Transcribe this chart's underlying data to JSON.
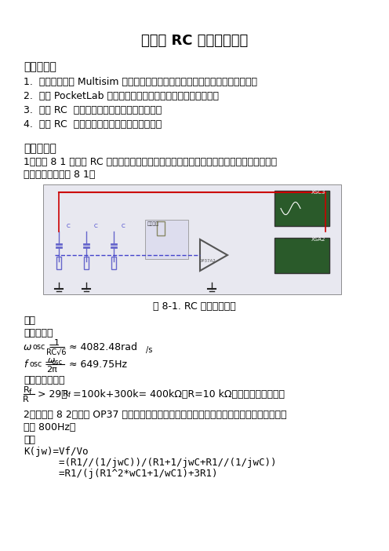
{
  "title": "实验八 RC 正弦波振荡器",
  "section1_title": "实验目的：",
  "section1_items": [
    "1.  熟悉仿真软件 Multisim 的使用，掌握基于软件的电路设计和仿真分析方法；",
    "2.  熟悉 PocketLab 硬件实验平台，掌握基本功能的使用方法；",
    "3.  掌握 RC  正弦波振荡器的设计与分析方法；",
    "4.  掌握 RC  正弦波振荡器的安装与调试方法。"
  ],
  "section2_title": "实验预习：",
  "section2_text1": "1．在图 8 1 所示的 RC 相移振荡电路中，请计算振荡器的振荡频率和振幅起振条件，并将",
  "section2_text2": "振荡频率填入表格 8 1。",
  "fig_caption": "图 8-1. RC 相移振荡电路",
  "answer1_title": "解：",
  "answer1_line1": "振荡频率：",
  "answer1_line2": "振幅起振条件：",
  "section3_text1": "2．根据图 8 2，采用 OP37 运算放大器和现有元器件值，设计文氏电桥振荡器，要求振荡频",
  "section3_text2": "率为 800Hz。",
  "answer2_title": "解：",
  "answer2_lines": [
    "K(jw)=Vf/Vo",
    "      =(R1//(1/jwC))/(R1+1/jwC+R1//(1/jwC))",
    "      =R1/(j(R1^2*wC1+1/wC1)+3R1)"
  ],
  "background_color": "#ffffff",
  "text_color": "#000000",
  "title_fontsize": 13,
  "body_fontsize": 9,
  "bold_section_fontsize": 10
}
